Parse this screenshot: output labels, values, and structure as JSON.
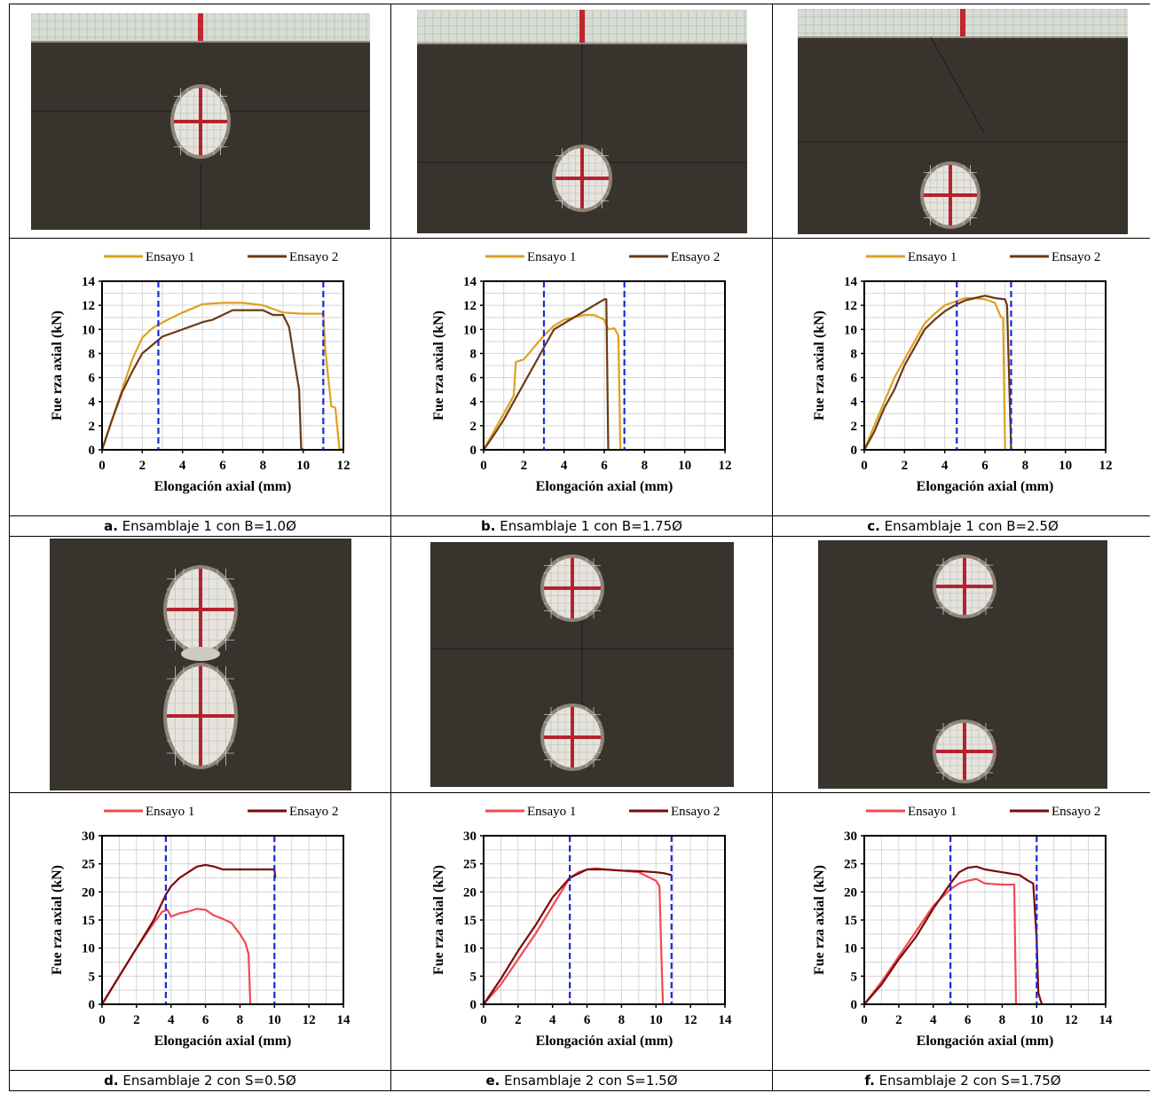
{
  "colors": {
    "ensayo1_top": "#e0a020",
    "ensayo2_top": "#6b3a14",
    "ensayo1_bottom": "#f04a50",
    "ensayo2_bottom": "#7a0a0a",
    "limit_line": "#1a2ad8"
  },
  "captions": [
    {
      "letter": "a.",
      "text": "Ensamblaje 1 con B=1.0Ø"
    },
    {
      "letter": "b.",
      "text": "Ensamblaje 1 con B=1.75Ø"
    },
    {
      "letter": "c.",
      "text": "Ensamblaje 1 con B=2.5Ø"
    },
    {
      "letter": "d.",
      "text": "Ensamblaje 2 con S=0.5Ø"
    },
    {
      "letter": "e.",
      "text": "Ensamblaje 2 con S=1.5Ø"
    },
    {
      "letter": "f.",
      "text": "Ensamblaje 2 con S=1.75Ø"
    }
  ],
  "chart_data": [
    {
      "type": "line",
      "xlabel": "Elongación axial (mm)",
      "ylabel": "Fue rza axial (kN)",
      "xlim": [
        0,
        12
      ],
      "ylim": [
        0,
        14
      ],
      "xticks": [
        0,
        2,
        4,
        6,
        8,
        10,
        12
      ],
      "yticks": [
        0,
        2,
        4,
        6,
        8,
        10,
        12,
        14
      ],
      "legend": "top",
      "grid": true,
      "vlines": [
        2.8,
        11.0
      ],
      "series": [
        {
          "name": "Ensayo 1",
          "x": [
            0,
            0.5,
            1,
            1.5,
            2,
            2.5,
            2.8,
            3.5,
            4,
            5,
            6,
            7,
            8,
            9,
            10,
            11,
            11.1,
            11.4,
            11.6,
            11.8,
            12
          ],
          "y": [
            0,
            2.5,
            5,
            7.5,
            9.3,
            10.1,
            10.4,
            11,
            11.4,
            12.1,
            12.2,
            12.2,
            12.0,
            11.4,
            11.3,
            11.3,
            8.3,
            3.6,
            3.5,
            0.1,
            0
          ]
        },
        {
          "name": "Ensayo 2",
          "x": [
            0,
            0.5,
            1,
            1.5,
            2,
            2.5,
            3,
            4,
            5,
            5.5,
            6,
            6.5,
            7,
            8,
            8.5,
            9,
            9.3,
            9.6,
            9.8,
            9.9,
            10
          ],
          "y": [
            0,
            2.5,
            4.8,
            6.5,
            8,
            8.7,
            9.4,
            10,
            10.6,
            10.8,
            11.2,
            11.6,
            11.6,
            11.6,
            11.2,
            11.2,
            10.2,
            7,
            5,
            0.1,
            0
          ]
        }
      ]
    },
    {
      "type": "line",
      "xlabel": "Elongación axial (mm)",
      "ylabel": "Fue rza axial (kN)",
      "xlim": [
        0,
        12
      ],
      "ylim": [
        0,
        14
      ],
      "xticks": [
        0,
        2,
        4,
        6,
        8,
        10,
        12
      ],
      "yticks": [
        0,
        2,
        4,
        6,
        8,
        10,
        12,
        14
      ],
      "legend": "top",
      "grid": true,
      "vlines": [
        3.0,
        7.0
      ],
      "series": [
        {
          "name": "Ensayo 1",
          "x": [
            0,
            0.5,
            1,
            1.5,
            1.6,
            2,
            2.5,
            3,
            3.5,
            4,
            5,
            5.5,
            6,
            6.2,
            6.5,
            6.7,
            6.8
          ],
          "y": [
            0,
            1.5,
            3,
            4.5,
            7.3,
            7.5,
            8.5,
            9.5,
            10.3,
            10.8,
            11.2,
            11.2,
            10.8,
            10,
            10.1,
            9.5,
            0
          ]
        },
        {
          "name": "Ensayo 2",
          "x": [
            0,
            0.5,
            1,
            1.5,
            2,
            2.5,
            3,
            3.5,
            4,
            4.5,
            5,
            5.5,
            6,
            6.1,
            6.2
          ],
          "y": [
            0,
            1.2,
            2.5,
            4,
            5.5,
            7,
            8.5,
            10,
            10.5,
            11,
            11.5,
            12,
            12.5,
            12.5,
            0
          ]
        }
      ]
    },
    {
      "type": "line",
      "xlabel": "Elongación axial (mm)",
      "ylabel": "Fue rza axial (kN)",
      "xlim": [
        0,
        12
      ],
      "ylim": [
        0,
        14
      ],
      "xticks": [
        0,
        2,
        4,
        6,
        8,
        10,
        12
      ],
      "yticks": [
        0,
        2,
        4,
        6,
        8,
        10,
        12,
        14
      ],
      "legend": "top",
      "grid": true,
      "vlines": [
        4.6,
        7.3
      ],
      "series": [
        {
          "name": "Ensayo 1",
          "x": [
            0,
            0.5,
            1,
            1.5,
            2,
            2.5,
            3,
            3.5,
            4,
            4.5,
            5,
            5.5,
            6,
            6.5,
            6.8,
            6.9,
            7.0
          ],
          "y": [
            0,
            2,
            4,
            6,
            7.5,
            9,
            10.5,
            11.3,
            12,
            12.3,
            12.6,
            12.6,
            12.5,
            12.2,
            11,
            11,
            0
          ]
        },
        {
          "name": "Ensayo 2",
          "x": [
            0,
            0.5,
            1,
            1.5,
            2,
            2.5,
            3,
            3.5,
            4,
            4.5,
            5,
            5.5,
            6,
            6.5,
            7,
            7.1,
            7.3
          ],
          "y": [
            0,
            1.5,
            3.5,
            5,
            7,
            8.5,
            10,
            10.8,
            11.5,
            12,
            12.4,
            12.6,
            12.8,
            12.6,
            12.5,
            12,
            0
          ]
        }
      ]
    },
    {
      "type": "line",
      "xlabel": "Elongación axial (mm)",
      "ylabel": "Fue rza axial (kN)",
      "xlim": [
        0,
        14
      ],
      "ylim": [
        0,
        30
      ],
      "xticks": [
        0,
        2,
        4,
        6,
        8,
        10,
        12,
        14
      ],
      "yticks": [
        0,
        5,
        10,
        15,
        20,
        25,
        30
      ],
      "legend": "top",
      "grid": true,
      "vlines": [
        3.7,
        10.0
      ],
      "series": [
        {
          "name": "Ensayo 1",
          "x": [
            0,
            1,
            2,
            3,
            3.5,
            3.8,
            4,
            4.5,
            5,
            5.5,
            6,
            6.5,
            7,
            7.5,
            8,
            8.3,
            8.5,
            8.6
          ],
          "y": [
            0,
            5,
            10,
            14.5,
            16.5,
            16.8,
            15.6,
            16.2,
            16.5,
            17,
            16.8,
            15.8,
            15.2,
            14.5,
            12.5,
            11,
            9,
            0
          ]
        },
        {
          "name": "Ensayo 2",
          "x": [
            0,
            1,
            2,
            3,
            3.7,
            4,
            4.5,
            5,
            5.5,
            6,
            6.5,
            7,
            8,
            9,
            10,
            10.05
          ],
          "y": [
            0,
            5,
            10,
            15,
            19.5,
            21,
            22.5,
            23.5,
            24.5,
            24.8,
            24.5,
            24,
            24,
            24,
            24,
            22.5
          ]
        }
      ]
    },
    {
      "type": "line",
      "xlabel": "Elongación axial (mm)",
      "ylabel": "Fue rza axial (kN)",
      "xlim": [
        0,
        14
      ],
      "ylim": [
        0,
        30
      ],
      "xticks": [
        0,
        2,
        4,
        6,
        8,
        10,
        12,
        14
      ],
      "yticks": [
        0,
        5,
        10,
        15,
        20,
        25,
        30
      ],
      "legend": "top",
      "grid": true,
      "vlines": [
        5.0,
        10.9
      ],
      "series": [
        {
          "name": "Ensayo 1",
          "x": [
            0,
            1,
            2,
            3,
            4,
            5,
            5.5,
            6,
            6.5,
            7,
            8,
            9,
            10,
            10.2,
            10.3,
            10.4
          ],
          "y": [
            0,
            3.5,
            8,
            12.5,
            17.5,
            22.5,
            23.5,
            24,
            24.2,
            24,
            23.8,
            23.5,
            22,
            21,
            10,
            0
          ]
        },
        {
          "name": "Ensayo 2",
          "x": [
            0,
            1,
            2,
            3,
            4,
            5,
            6,
            7,
            8,
            9,
            10,
            10.5,
            10.9
          ],
          "y": [
            0,
            4.5,
            9.5,
            14,
            19,
            22.5,
            24,
            24,
            23.8,
            23.7,
            23.5,
            23.3,
            23
          ]
        }
      ]
    },
    {
      "type": "line",
      "xlabel": "Elongación axial (mm)",
      "ylabel": "Fue rza axial (kN)",
      "xlim": [
        0,
        14
      ],
      "ylim": [
        0,
        30
      ],
      "xticks": [
        0,
        2,
        4,
        6,
        8,
        10,
        12,
        14
      ],
      "yticks": [
        0,
        5,
        10,
        15,
        20,
        25,
        30
      ],
      "legend": "top",
      "grid": true,
      "vlines": [
        5.0,
        10.0
      ],
      "series": [
        {
          "name": "Ensayo 1",
          "x": [
            0,
            1,
            2,
            3,
            4,
            5,
            5.5,
            6,
            6.5,
            7,
            8,
            8.7,
            8.8
          ],
          "y": [
            0,
            4,
            8.5,
            13,
            17.5,
            20.5,
            21.5,
            22,
            22.3,
            21.5,
            21.3,
            21.3,
            0
          ]
        },
        {
          "name": "Ensayo 2",
          "x": [
            0,
            1,
            2,
            3,
            4,
            5,
            5.5,
            6,
            6.5,
            7,
            8,
            9,
            9.5,
            9.8,
            10,
            10.1,
            10.3
          ],
          "y": [
            0,
            3.5,
            8,
            12,
            17,
            21.5,
            23.5,
            24.3,
            24.5,
            24,
            23.5,
            23,
            22,
            21.5,
            11.5,
            2,
            0
          ]
        }
      ]
    }
  ]
}
